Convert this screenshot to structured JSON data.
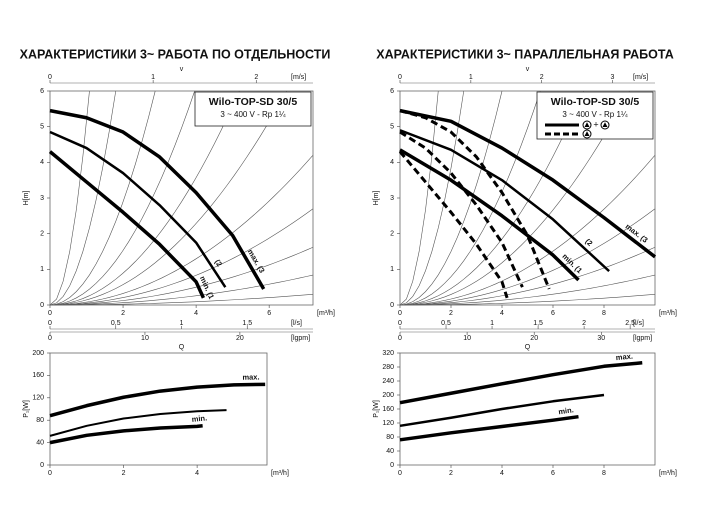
{
  "chart_data": [
    {
      "type": "line",
      "title": "ХАРАКТЕРИСТИКИ 3~ РАБОТА ПО ОТДЕЛЬНОСТИ",
      "box_title": "Wilo-TOP-SD 30/5",
      "box_subtitle": "3 ~ 400 V - Rp 1¼",
      "ylabel": "H[m]",
      "xlabel": "[m³/h]",
      "xlim": [
        0,
        7.2
      ],
      "xticks": [
        0,
        2,
        4,
        6
      ],
      "ylim": [
        0,
        6
      ],
      "yticks": [
        0,
        1,
        2,
        3,
        4,
        5,
        6
      ],
      "top_axis": {
        "name": "v",
        "label": "[m/s]",
        "lim": [
          0,
          2.55
        ],
        "ticks": [
          0,
          1,
          2
        ]
      },
      "bottom_axes": [
        {
          "label": "[l/s]",
          "lim": [
            0,
            2.0
          ],
          "ticks": [
            0,
            {
              "value": 0.5,
              "label": "0,5"
            },
            1,
            {
              "value": 1.5,
              "label": "1,5"
            }
          ]
        },
        {
          "name": "Q",
          "label": "[lgpm]",
          "lim": [
            0,
            27.7
          ],
          "ticks": [
            0,
            10,
            20
          ]
        }
      ],
      "series": [
        {
          "name": "max. (3",
          "color": "#000000",
          "width": 3.5,
          "dash": false,
          "x": [
            0,
            1,
            2,
            3,
            4,
            5,
            5.85
          ],
          "values": [
            5.45,
            5.25,
            4.85,
            4.15,
            3.15,
            1.95,
            0.45
          ]
        },
        {
          "name": "(2",
          "color": "#000000",
          "width": 2.5,
          "dash": false,
          "x": [
            0,
            1,
            2,
            3,
            4,
            4.8
          ],
          "values": [
            4.85,
            4.4,
            3.7,
            2.8,
            1.75,
            0.5
          ]
        },
        {
          "name": "min. (1",
          "color": "#000000",
          "width": 3.5,
          "dash": false,
          "x": [
            0,
            1,
            2,
            3,
            4,
            4.2
          ],
          "values": [
            4.3,
            3.45,
            2.6,
            1.7,
            0.65,
            0.2
          ]
        }
      ]
    },
    {
      "type": "line",
      "ylabel": "P₁[W]",
      "xlabel": "[m³/h]",
      "xlim": [
        0,
        5.9
      ],
      "xticks": [
        0,
        2,
        4
      ],
      "ylim": [
        0,
        200
      ],
      "yticks": [
        0,
        40,
        80,
        120,
        160,
        200
      ],
      "series": [
        {
          "name": "max.",
          "color": "#000000",
          "width": 3.5,
          "dash": false,
          "x": [
            0,
            1,
            2,
            3,
            4,
            5,
            5.85
          ],
          "values": [
            88,
            106,
            121,
            132,
            139,
            143,
            144
          ]
        },
        {
          "color": "#000000",
          "width": 2,
          "dash": false,
          "x": [
            0,
            1,
            2,
            3,
            4,
            4.8
          ],
          "values": [
            52,
            70,
            83,
            91,
            96,
            98
          ]
        },
        {
          "name": "min.",
          "color": "#000000",
          "width": 3.5,
          "dash": false,
          "x": [
            0,
            1,
            2,
            3,
            4,
            4.15
          ],
          "values": [
            40,
            53,
            61,
            66,
            69,
            70
          ]
        }
      ]
    },
    {
      "type": "line",
      "title": "ХАРАКТЕРИСТИКИ 3~ ПАРАЛЛЕЛЬНАЯ РАБОТА",
      "box_title": "Wilo-TOP-SD 30/5",
      "box_subtitle": "3 ~ 400 V - Rp 1¼",
      "legend_plus": "+",
      "ylabel": "H[m]",
      "xlabel": "[m³/h]",
      "xlim": [
        0,
        10
      ],
      "xticks": [
        0,
        2,
        4,
        6,
        8
      ],
      "ylim": [
        0,
        6
      ],
      "yticks": [
        0,
        1,
        2,
        3,
        4,
        5,
        6
      ],
      "top_axis": {
        "name": "v",
        "label": "[m/s]",
        "lim": [
          0,
          3.6
        ],
        "ticks": [
          0,
          1,
          2,
          3
        ]
      },
      "bottom_axes": [
        {
          "label": "[l/s]",
          "lim": [
            0,
            2.77
          ],
          "ticks": [
            0,
            {
              "value": 0.5,
              "label": "0,5"
            },
            1,
            {
              "value": 1.5,
              "label": "1,5"
            },
            2,
            {
              "value": 2.5,
              "label": "2,5"
            }
          ]
        },
        {
          "name": "Q",
          "label": "[lgpm]",
          "lim": [
            0,
            38
          ],
          "ticks": [
            0,
            10,
            20,
            30
          ]
        }
      ],
      "series": [
        {
          "name": "max. (3",
          "color": "#000000",
          "width": 3.5,
          "dash": false,
          "x": [
            0,
            2,
            4,
            6,
            8,
            10
          ],
          "values": [
            5.45,
            5.15,
            4.4,
            3.5,
            2.45,
            1.35
          ]
        },
        {
          "name": "(2",
          "color": "#000000",
          "width": 2.5,
          "dash": false,
          "x": [
            0,
            2,
            4,
            6,
            8.2
          ],
          "values": [
            4.9,
            4.35,
            3.5,
            2.4,
            0.95
          ]
        },
        {
          "name": "min. (1",
          "color": "#000000",
          "width": 3.5,
          "dash": false,
          "x": [
            0,
            2,
            4,
            6,
            7
          ],
          "values": [
            4.35,
            3.5,
            2.5,
            1.4,
            0.7
          ]
        },
        {
          "color": "#000000",
          "width": 3,
          "dash": true,
          "x": [
            0,
            1,
            2,
            3,
            4,
            5,
            5.85
          ],
          "values": [
            5.45,
            5.25,
            4.85,
            4.15,
            3.15,
            1.95,
            0.45
          ]
        },
        {
          "color": "#000000",
          "width": 3,
          "dash": true,
          "x": [
            0,
            1,
            2,
            3,
            4,
            4.8
          ],
          "values": [
            4.85,
            4.4,
            3.7,
            2.8,
            1.75,
            0.5
          ]
        },
        {
          "color": "#000000",
          "width": 3,
          "dash": true,
          "x": [
            0,
            1,
            2,
            3,
            4,
            4.2
          ],
          "values": [
            4.3,
            3.45,
            2.6,
            1.7,
            0.65,
            0.2
          ]
        }
      ]
    },
    {
      "type": "line",
      "ylabel": "P₁[W]",
      "xlabel": "[m³/h]",
      "xlim": [
        0,
        10
      ],
      "xticks": [
        0,
        2,
        4,
        6,
        8
      ],
      "ylim": [
        0,
        320
      ],
      "yticks": [
        0,
        40,
        80,
        120,
        160,
        200,
        240,
        280,
        320
      ],
      "series": [
        {
          "name": "max.",
          "color": "#000000",
          "width": 3.5,
          "dash": false,
          "x": [
            0,
            2,
            4,
            6,
            8,
            9.5
          ],
          "values": [
            178,
            205,
            232,
            258,
            282,
            292
          ]
        },
        {
          "color": "#000000",
          "width": 2.5,
          "dash": false,
          "x": [
            0,
            2,
            4,
            6,
            8
          ],
          "values": [
            112,
            135,
            160,
            182,
            200
          ]
        },
        {
          "name": "min.",
          "color": "#000000",
          "width": 3.5,
          "dash": false,
          "x": [
            0,
            2,
            4,
            6,
            7
          ],
          "values": [
            72,
            92,
            110,
            128,
            138
          ]
        }
      ]
    }
  ]
}
